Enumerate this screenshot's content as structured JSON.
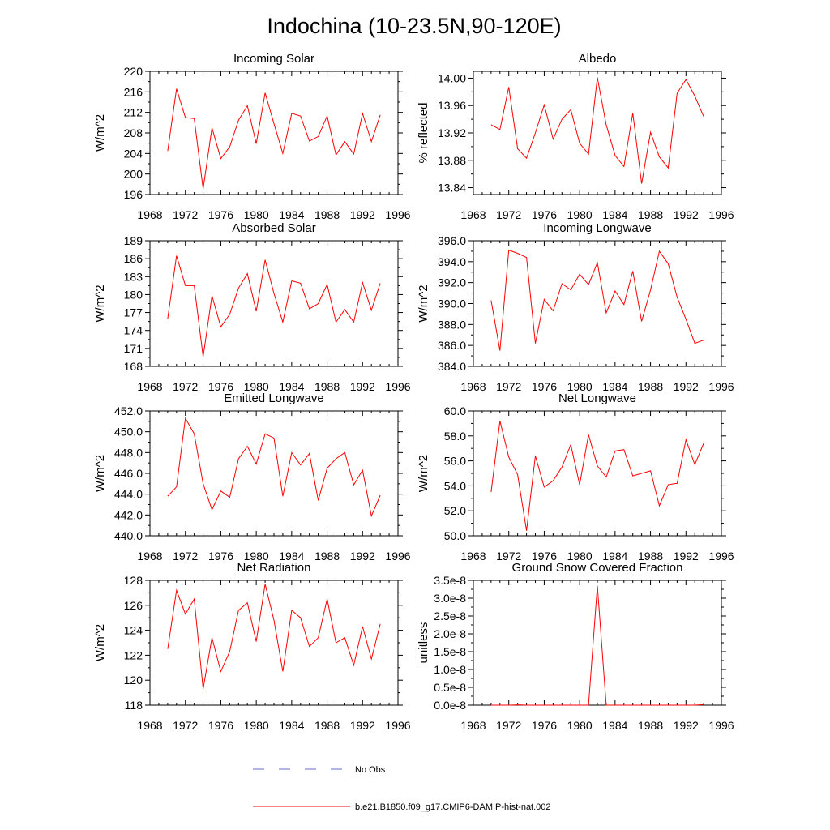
{
  "figure": {
    "title": "Indochina (10-23.5N,90-120E)"
  },
  "legend": {
    "entries": [
      {
        "label": "No Obs",
        "color": "#6a6ad0",
        "dashed": true
      },
      {
        "label": "b.e21.B1850.f09_g17.CMIP6-DAMIP-hist-nat.002",
        "color": "#ff0000",
        "dashed": false
      }
    ]
  },
  "chart_data": [
    {
      "type": "line",
      "title": "Incoming Solar",
      "ylabel": "W/m^2",
      "xlim": [
        1968,
        1996
      ],
      "ylim": [
        196,
        220
      ],
      "xticks": [
        "1968",
        "1972",
        "1976",
        "1980",
        "1984",
        "1988",
        "1992",
        "1996"
      ],
      "yticks": [
        "196",
        "200",
        "204",
        "208",
        "212",
        "216",
        "220"
      ],
      "grid": false,
      "series": [
        {
          "color": "#ff0000",
          "x": [
            1970,
            1971,
            1972,
            1973,
            1974,
            1975,
            1976,
            1977,
            1978,
            1979,
            1980,
            1981,
            1982,
            1983,
            1984,
            1985,
            1986,
            1987,
            1988,
            1989,
            1990,
            1991,
            1992,
            1993,
            1994
          ],
          "y": [
            204.5,
            216.6,
            211.0,
            210.8,
            197.1,
            209.0,
            203.0,
            205.3,
            210.5,
            213.3,
            205.9,
            215.8,
            209.8,
            204.0,
            211.8,
            211.3,
            206.4,
            207.3,
            211.3,
            203.7,
            206.3,
            203.9,
            211.8,
            206.3,
            211.5
          ]
        }
      ]
    },
    {
      "type": "line",
      "title": "Albedo",
      "ylabel": "% reflected",
      "xlim": [
        1968,
        1996
      ],
      "ylim": [
        13.83,
        14.01
      ],
      "xticks": [
        "1968",
        "1972",
        "1976",
        "1980",
        "1984",
        "1988",
        "1992",
        "1996"
      ],
      "yticks": [
        "13.84",
        "13.88",
        "13.92",
        "13.96",
        "14.00"
      ],
      "grid": false,
      "series": [
        {
          "color": "#ff0000",
          "x": [
            1970,
            1971,
            1972,
            1973,
            1974,
            1975,
            1976,
            1977,
            1978,
            1979,
            1980,
            1981,
            1982,
            1983,
            1984,
            1985,
            1986,
            1987,
            1988,
            1989,
            1990,
            1991,
            1992,
            1993,
            1994
          ],
          "y": [
            13.932,
            13.925,
            13.987,
            13.897,
            13.883,
            13.92,
            13.961,
            13.911,
            13.94,
            13.954,
            13.905,
            13.889,
            14.001,
            13.932,
            13.887,
            13.871,
            13.949,
            13.846,
            13.921,
            13.885,
            13.869,
            13.978,
            13.998,
            13.974,
            13.944
          ]
        }
      ]
    },
    {
      "type": "line",
      "title": "Absorbed Solar",
      "ylabel": "W/m^2",
      "xlim": [
        1968,
        1996
      ],
      "ylim": [
        168,
        189
      ],
      "xticks": [
        "1968",
        "1972",
        "1976",
        "1980",
        "1984",
        "1988",
        "1992",
        "1996"
      ],
      "yticks": [
        "168",
        "171",
        "174",
        "177",
        "180",
        "183",
        "186",
        "189"
      ],
      "grid": false,
      "series": [
        {
          "color": "#ff0000",
          "x": [
            1970,
            1971,
            1972,
            1973,
            1974,
            1975,
            1976,
            1977,
            1978,
            1979,
            1980,
            1981,
            1982,
            1983,
            1984,
            1985,
            1986,
            1987,
            1988,
            1989,
            1990,
            1991,
            1992,
            1993,
            1994
          ],
          "y": [
            176.0,
            186.5,
            181.5,
            181.5,
            169.6,
            179.8,
            174.6,
            176.7,
            181.1,
            183.5,
            177.2,
            185.8,
            180.2,
            175.4,
            182.3,
            181.9,
            177.6,
            178.5,
            181.7,
            175.4,
            177.5,
            175.4,
            182.0,
            177.4,
            181.9
          ]
        }
      ]
    },
    {
      "type": "line",
      "title": "Incoming Longwave",
      "ylabel": "W/m^2",
      "xlim": [
        1968,
        1996
      ],
      "ylim": [
        384,
        396
      ],
      "xticks": [
        "1968",
        "1972",
        "1976",
        "1980",
        "1984",
        "1988",
        "1992",
        "1996"
      ],
      "yticks": [
        "384.0",
        "386.0",
        "388.0",
        "390.0",
        "392.0",
        "394.0",
        "396.0"
      ],
      "grid": false,
      "series": [
        {
          "color": "#ff0000",
          "x": [
            1970,
            1971,
            1972,
            1973,
            1974,
            1975,
            1976,
            1977,
            1978,
            1979,
            1980,
            1981,
            1982,
            1983,
            1984,
            1985,
            1986,
            1987,
            1988,
            1989,
            1990,
            1991,
            1992,
            1993,
            1994
          ],
          "y": [
            390.3,
            385.5,
            395.1,
            394.8,
            394.4,
            386.2,
            390.4,
            389.3,
            391.9,
            391.3,
            392.8,
            391.8,
            393.9,
            389.1,
            391.2,
            389.9,
            393.1,
            388.3,
            391.3,
            395.0,
            393.8,
            390.6,
            388.5,
            386.2,
            386.5
          ]
        }
      ]
    },
    {
      "type": "line",
      "title": "Emitted Longwave",
      "ylabel": "W/m^2",
      "xlim": [
        1968,
        1996
      ],
      "ylim": [
        440,
        452
      ],
      "xticks": [
        "1968",
        "1972",
        "1976",
        "1980",
        "1984",
        "1988",
        "1992",
        "1996"
      ],
      "yticks": [
        "440.0",
        "442.0",
        "444.0",
        "446.0",
        "448.0",
        "450.0",
        "452.0"
      ],
      "grid": false,
      "series": [
        {
          "color": "#ff0000",
          "x": [
            1970,
            1971,
            1972,
            1973,
            1974,
            1975,
            1976,
            1977,
            1978,
            1979,
            1980,
            1981,
            1982,
            1983,
            1984,
            1985,
            1986,
            1987,
            1988,
            1989,
            1990,
            1991,
            1992,
            1993,
            1994
          ],
          "y": [
            443.8,
            444.7,
            451.3,
            449.8,
            445.0,
            442.5,
            444.3,
            443.7,
            447.4,
            448.6,
            446.9,
            449.8,
            449.4,
            443.8,
            448.0,
            446.8,
            447.9,
            443.4,
            446.5,
            447.4,
            448.0,
            444.9,
            446.3,
            441.9,
            443.9
          ]
        }
      ]
    },
    {
      "type": "line",
      "title": "Net Longwave",
      "ylabel": "W/m^2",
      "xlim": [
        1968,
        1996
      ],
      "ylim": [
        50,
        60
      ],
      "xticks": [
        "1968",
        "1972",
        "1976",
        "1980",
        "1984",
        "1988",
        "1992",
        "1996"
      ],
      "yticks": [
        "50.0",
        "52.0",
        "54.0",
        "56.0",
        "58.0",
        "60.0"
      ],
      "grid": false,
      "series": [
        {
          "color": "#ff0000",
          "x": [
            1970,
            1971,
            1972,
            1973,
            1974,
            1975,
            1976,
            1977,
            1978,
            1979,
            1980,
            1981,
            1982,
            1983,
            1984,
            1985,
            1986,
            1987,
            1988,
            1989,
            1990,
            1991,
            1992,
            1993,
            1994
          ],
          "y": [
            53.5,
            59.2,
            56.3,
            54.9,
            50.4,
            56.4,
            53.9,
            54.4,
            55.5,
            57.3,
            54.1,
            58.1,
            55.6,
            54.7,
            56.8,
            56.9,
            54.8,
            55.0,
            55.2,
            52.4,
            54.1,
            54.2,
            57.7,
            55.7,
            57.4
          ]
        }
      ]
    },
    {
      "type": "line",
      "title": "Net Radiation",
      "ylabel": "W/m^2",
      "xlim": [
        1968,
        1996
      ],
      "ylim": [
        118,
        128
      ],
      "xticks": [
        "1968",
        "1972",
        "1976",
        "1980",
        "1984",
        "1988",
        "1992",
        "1996"
      ],
      "yticks": [
        "118",
        "120",
        "122",
        "124",
        "126",
        "128"
      ],
      "grid": false,
      "series": [
        {
          "color": "#ff0000",
          "x": [
            1970,
            1971,
            1972,
            1973,
            1974,
            1975,
            1976,
            1977,
            1978,
            1979,
            1980,
            1981,
            1982,
            1983,
            1984,
            1985,
            1986,
            1987,
            1988,
            1989,
            1990,
            1991,
            1992,
            1993,
            1994
          ],
          "y": [
            122.5,
            127.2,
            125.3,
            126.5,
            119.3,
            123.4,
            120.7,
            122.3,
            125.6,
            126.2,
            123.1,
            127.7,
            124.8,
            120.7,
            125.6,
            125.0,
            122.7,
            123.4,
            126.5,
            123.0,
            123.4,
            121.2,
            124.3,
            121.7,
            124.5
          ]
        }
      ]
    },
    {
      "type": "line",
      "title": "Ground Snow Covered Fraction",
      "ylabel": "unitless",
      "xlim": [
        1968,
        1996
      ],
      "ylim": [
        0,
        3.5e-08
      ],
      "xticks": [
        "1968",
        "1972",
        "1976",
        "1980",
        "1984",
        "1988",
        "1992",
        "1996"
      ],
      "yticks": [
        "0.0e-8",
        "0.5e-8",
        "1.0e-8",
        "1.5e-8",
        "2.0e-8",
        "2.5e-8",
        "3.0e-8",
        "3.5e-8"
      ],
      "grid": false,
      "series": [
        {
          "color": "#ff0000",
          "x": [
            1970,
            1971,
            1972,
            1973,
            1974,
            1975,
            1976,
            1977,
            1978,
            1979,
            1980,
            1981,
            1982,
            1983,
            1984,
            1985,
            1986,
            1987,
            1988,
            1989,
            1990,
            1991,
            1992,
            1993,
            1994
          ],
          "y": [
            0,
            0,
            0,
            1e-10,
            0,
            0,
            0,
            0,
            0,
            0,
            0,
            0,
            3.35e-08,
            0,
            0,
            0,
            0,
            0,
            0,
            0,
            0,
            0,
            0,
            0,
            1.6e-10
          ]
        }
      ]
    }
  ]
}
